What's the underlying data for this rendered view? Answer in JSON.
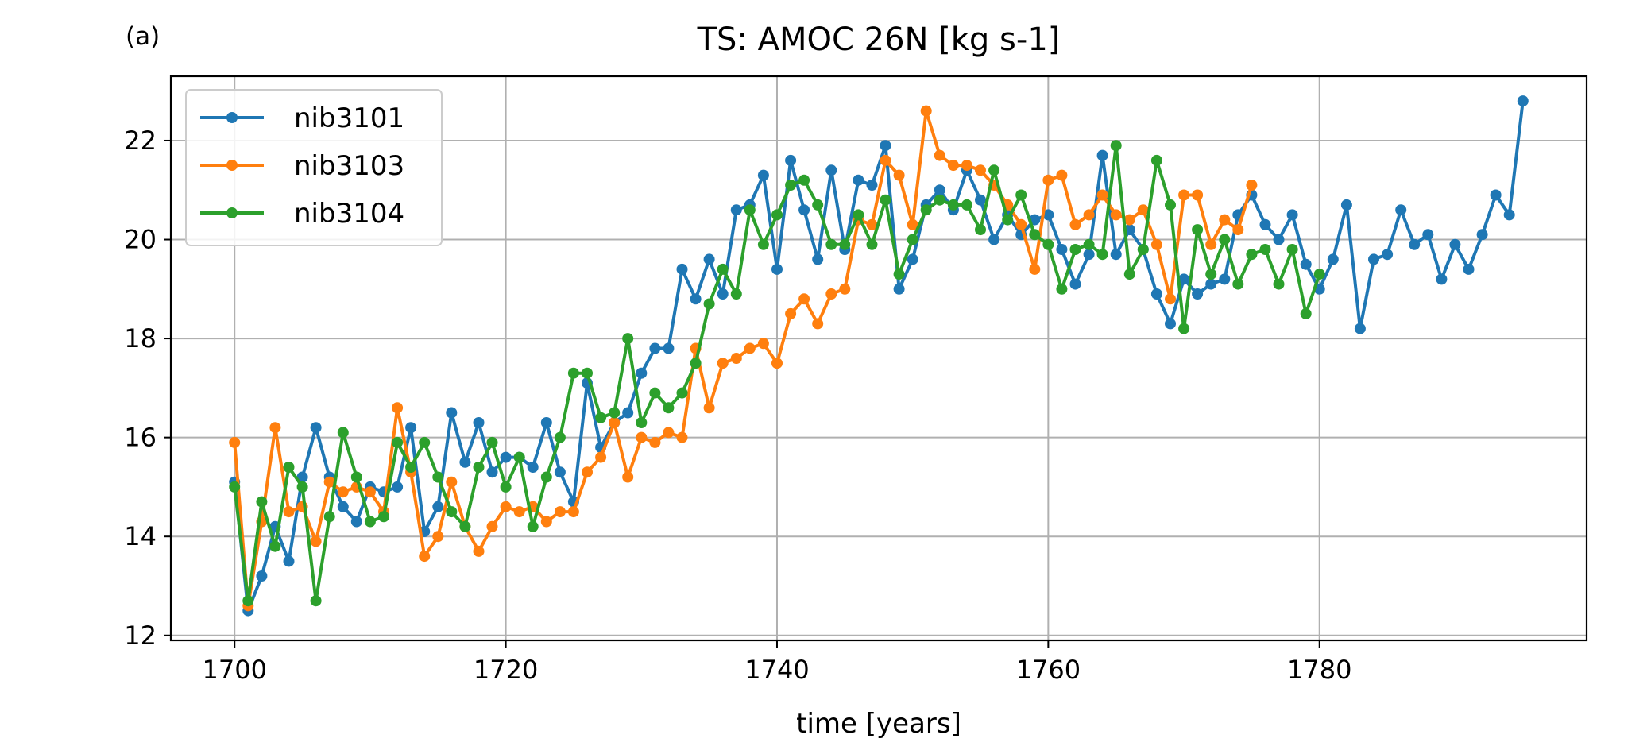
{
  "panel_label": "(a)",
  "chart_data": {
    "type": "line",
    "title": "TS: AMOC 26N [kg s-1]",
    "xlabel": "time [years]",
    "ylabel": "",
    "xlim": [
      1695.3,
      1799.7
    ],
    "ylim": [
      11.9,
      23.3
    ],
    "xticks": [
      1700,
      1720,
      1740,
      1760,
      1780
    ],
    "yticks": [
      12,
      14,
      16,
      18,
      20,
      22
    ],
    "grid": true,
    "legend_position": "top-left",
    "series": [
      {
        "name": "nib3101",
        "color": "#1f77b4",
        "x_start": 1700,
        "values": [
          15.1,
          12.5,
          13.2,
          14.2,
          13.5,
          15.2,
          16.2,
          15.2,
          14.6,
          14.3,
          15.0,
          14.9,
          15.0,
          16.2,
          14.1,
          14.6,
          16.5,
          15.5,
          16.3,
          15.3,
          15.6,
          15.6,
          15.4,
          16.3,
          15.3,
          14.7,
          17.1,
          15.8,
          16.3,
          16.5,
          17.3,
          17.8,
          17.8,
          19.4,
          18.8,
          19.6,
          18.9,
          20.6,
          20.7,
          21.3,
          19.4,
          21.6,
          20.6,
          19.6,
          21.4,
          19.8,
          21.2,
          21.1,
          21.9,
          19.0,
          19.6,
          20.7,
          21.0,
          20.6,
          21.4,
          20.8,
          20.0,
          20.5,
          20.1,
          20.4,
          20.5,
          19.8,
          19.1,
          19.7,
          21.7,
          19.7,
          20.2,
          19.8,
          18.9,
          18.3,
          19.2,
          18.9,
          19.1,
          19.2,
          20.5,
          20.9,
          20.3,
          20.0,
          20.5,
          19.5,
          19.0,
          19.6,
          20.7,
          18.2,
          19.6,
          19.7,
          20.6,
          19.9,
          20.1,
          19.2,
          19.9,
          19.4,
          20.1,
          20.9,
          20.5,
          22.8
        ]
      },
      {
        "name": "nib3103",
        "color": "#ff7f0e",
        "x_start": 1700,
        "values": [
          15.9,
          12.6,
          14.3,
          16.2,
          14.5,
          14.6,
          13.9,
          15.1,
          14.9,
          15.0,
          14.9,
          14.5,
          16.6,
          15.3,
          13.6,
          14.0,
          15.1,
          14.2,
          13.7,
          14.2,
          14.6,
          14.5,
          14.6,
          14.3,
          14.5,
          14.5,
          15.3,
          15.6,
          16.3,
          15.2,
          16.0,
          15.9,
          16.1,
          16.0,
          17.8,
          16.6,
          17.5,
          17.6,
          17.8,
          17.9,
          17.5,
          18.5,
          18.8,
          18.3,
          18.9,
          19.0,
          20.4,
          20.3,
          21.6,
          21.3,
          20.3,
          22.6,
          21.7,
          21.5,
          21.5,
          21.4,
          21.1,
          20.7,
          20.3,
          19.4,
          21.2,
          21.3,
          20.3,
          20.5,
          20.9,
          20.5,
          20.4,
          20.6,
          19.9,
          18.8,
          20.9,
          20.9,
          19.9,
          20.4,
          20.2,
          21.1
        ]
      },
      {
        "name": "nib3104",
        "color": "#2ca02c",
        "x_start": 1700,
        "values": [
          15.0,
          12.7,
          14.7,
          13.8,
          15.4,
          15.0,
          12.7,
          14.4,
          16.1,
          15.2,
          14.3,
          14.4,
          15.9,
          15.4,
          15.9,
          15.2,
          14.5,
          14.2,
          15.4,
          15.9,
          15.0,
          15.6,
          14.2,
          15.2,
          16.0,
          17.3,
          17.3,
          16.4,
          16.5,
          18.0,
          16.3,
          16.9,
          16.6,
          16.9,
          17.5,
          18.7,
          19.4,
          18.9,
          20.6,
          19.9,
          20.5,
          21.1,
          21.2,
          20.7,
          19.9,
          19.9,
          20.5,
          19.9,
          20.8,
          19.3,
          20.0,
          20.6,
          20.8,
          20.7,
          20.7,
          20.2,
          21.4,
          20.4,
          20.9,
          20.1,
          19.9,
          19.0,
          19.8,
          19.9,
          19.7,
          21.9,
          19.3,
          19.8,
          21.6,
          20.7,
          18.2,
          20.2,
          19.3,
          20.0,
          19.1,
          19.7,
          19.8,
          19.1,
          19.8,
          18.5,
          19.3
        ]
      }
    ]
  }
}
